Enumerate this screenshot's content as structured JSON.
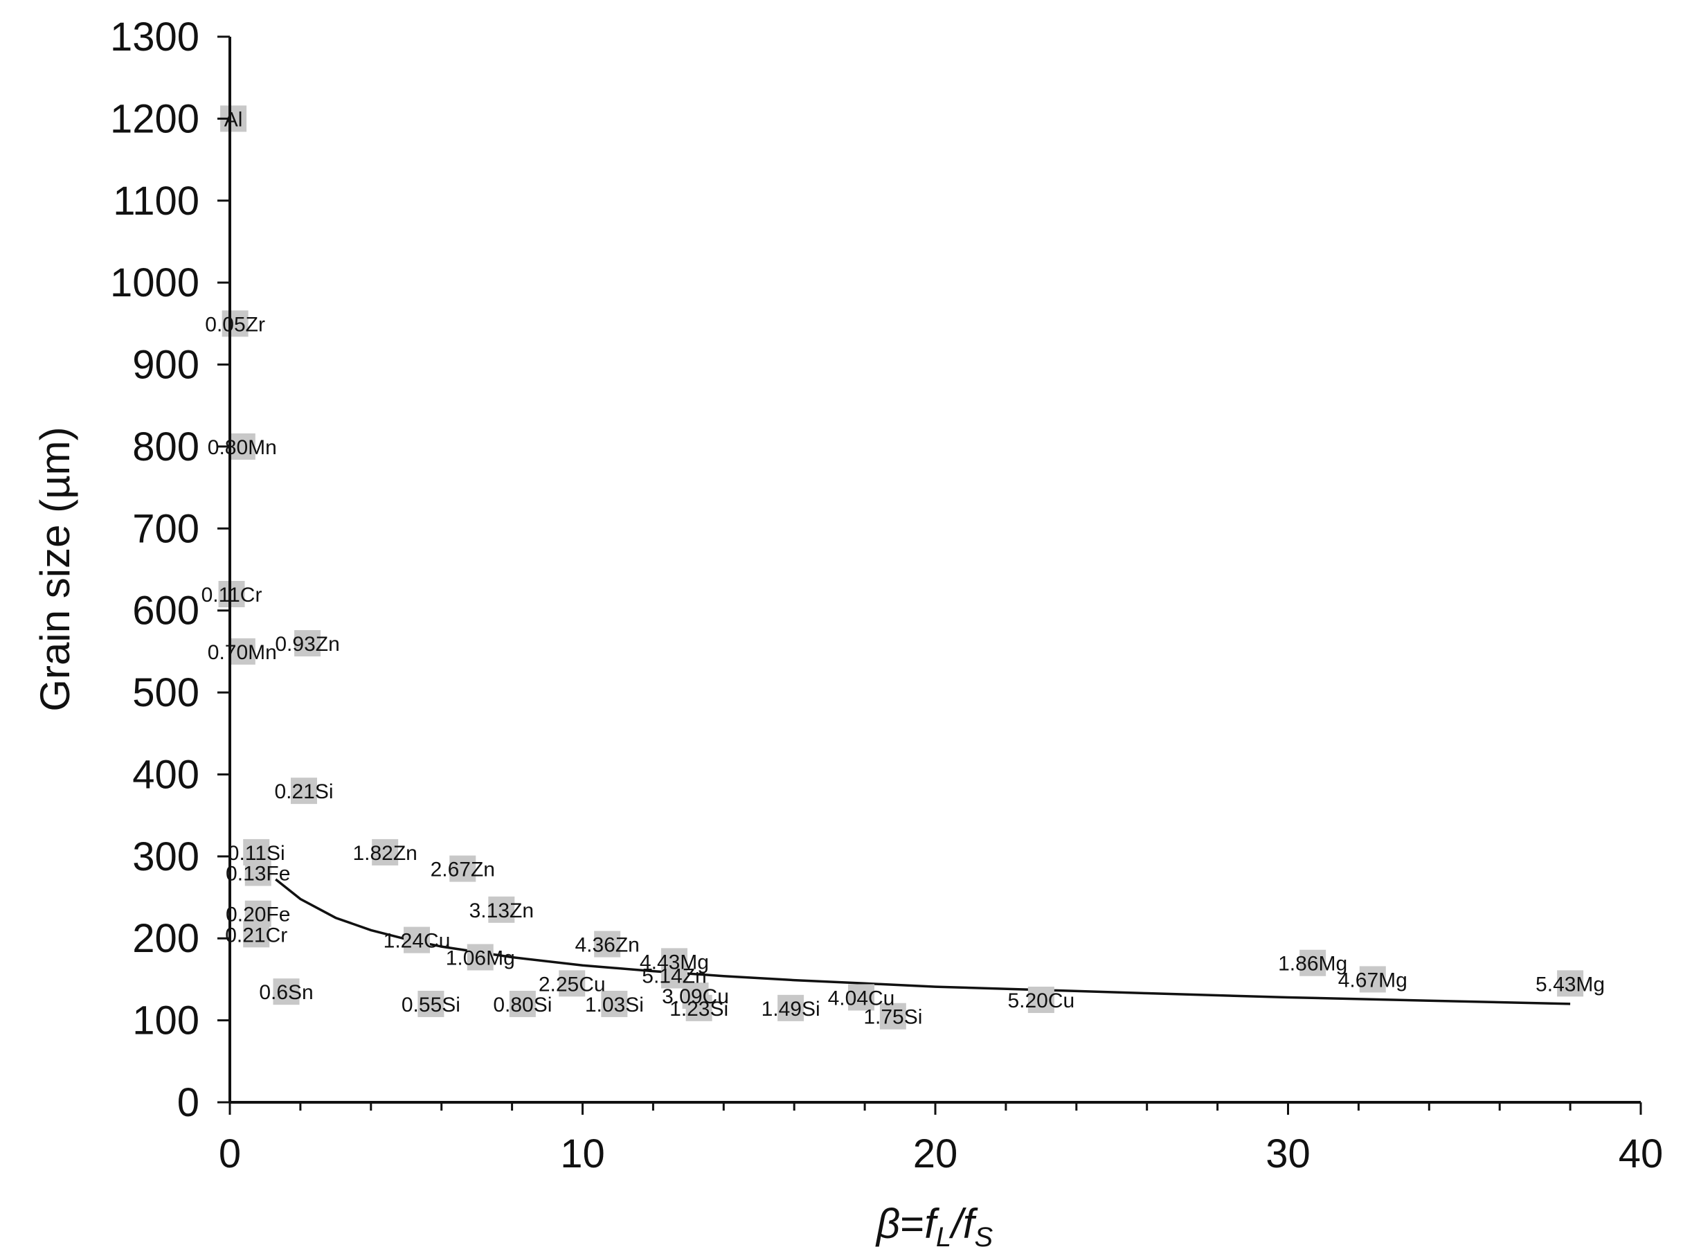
{
  "chart_data": {
    "type": "scatter",
    "title": "",
    "xlabel": "β=fL/fS",
    "xlabel_parts": {
      "beta": "β",
      "eq": "=",
      "fl": "f",
      "l_sub": "L",
      "slash": "/",
      "fs": "f",
      "s_sub": "S"
    },
    "ylabel": "Grain size (µm)",
    "xlim": [
      0,
      40
    ],
    "ylim": [
      0,
      1300
    ],
    "xticks": [
      "0",
      "10",
      "20",
      "30",
      "40"
    ],
    "xtick_values": [
      0,
      10,
      20,
      30,
      40
    ],
    "yticks": [
      "0",
      "100",
      "200",
      "300",
      "400",
      "500",
      "600",
      "700",
      "800",
      "900",
      "1000",
      "1100",
      "1200",
      "1300"
    ],
    "ytick_values": [
      0,
      100,
      200,
      300,
      400,
      500,
      600,
      700,
      800,
      900,
      1000,
      1100,
      1200,
      1300
    ],
    "grid": false,
    "legend": "none",
    "colors": {
      "marker": "#c8c8c8",
      "line": "#111111"
    },
    "points": [
      {
        "label": "Al",
        "x": 0.1,
        "y": 1200
      },
      {
        "label": "0.05Zr",
        "x": 0.15,
        "y": 950
      },
      {
        "label": "0.80Mn",
        "x": 0.35,
        "y": 800
      },
      {
        "label": "0.11Cr",
        "x": 0.05,
        "y": 620
      },
      {
        "label": "0.70Mn",
        "x": 0.35,
        "y": 550
      },
      {
        "label": "0.93Zn",
        "x": 2.2,
        "y": 560
      },
      {
        "label": "0.21Si",
        "x": 2.1,
        "y": 380
      },
      {
        "label": "0.11Si",
        "x": 0.75,
        "y": 305
      },
      {
        "label": "0.13Fe",
        "x": 0.8,
        "y": 280
      },
      {
        "label": "1.82Zn",
        "x": 4.4,
        "y": 305
      },
      {
        "label": "2.67Zn",
        "x": 6.6,
        "y": 285
      },
      {
        "label": "3.13Zn",
        "x": 7.7,
        "y": 235
      },
      {
        "label": "0.20Fe",
        "x": 0.8,
        "y": 230
      },
      {
        "label": "0.21Cr",
        "x": 0.75,
        "y": 205
      },
      {
        "label": "1.24Cu",
        "x": 5.3,
        "y": 198
      },
      {
        "label": "1.06Mg",
        "x": 7.1,
        "y": 177
      },
      {
        "label": "4.36Zn",
        "x": 10.7,
        "y": 193
      },
      {
        "label": "4.43Mg",
        "x": 12.6,
        "y": 172
      },
      {
        "label": "5.14Zn",
        "x": 12.6,
        "y": 155
      },
      {
        "label": "2.25Cu",
        "x": 9.7,
        "y": 145
      },
      {
        "label": "3.09Cu",
        "x": 13.2,
        "y": 130
      },
      {
        "label": "0.6Sn",
        "x": 1.6,
        "y": 135
      },
      {
        "label": "0.55Si",
        "x": 5.7,
        "y": 120
      },
      {
        "label": "0.80Si",
        "x": 8.3,
        "y": 120
      },
      {
        "label": "1.03Si",
        "x": 10.9,
        "y": 120
      },
      {
        "label": "1.23Si",
        "x": 13.3,
        "y": 115
      },
      {
        "label": "1.49Si",
        "x": 15.9,
        "y": 115
      },
      {
        "label": "4.04Cu",
        "x": 17.9,
        "y": 128
      },
      {
        "label": "1.75Si",
        "x": 18.8,
        "y": 105
      },
      {
        "label": "5.20Cu",
        "x": 23.0,
        "y": 125
      },
      {
        "label": "1.86Mg",
        "x": 30.7,
        "y": 170
      },
      {
        "label": "4.67Mg",
        "x": 32.4,
        "y": 150
      },
      {
        "label": "5.43Mg",
        "x": 38.0,
        "y": 145
      }
    ],
    "fit_curve": {
      "x": [
        1.3,
        2,
        3,
        4,
        5,
        6,
        8,
        10,
        12,
        14,
        16,
        18,
        20,
        23,
        26,
        30,
        34,
        38
      ],
      "y": [
        272,
        248,
        225,
        210,
        199,
        190,
        177,
        167,
        160,
        154,
        149,
        145,
        141,
        137,
        133,
        128,
        124,
        120
      ]
    }
  }
}
